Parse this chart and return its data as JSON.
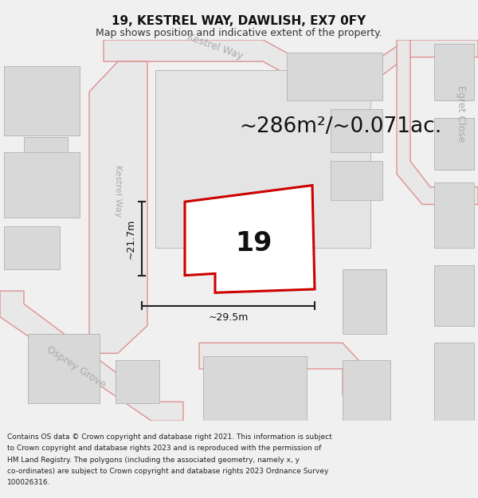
{
  "title": "19, KESTREL WAY, DAWLISH, EX7 0FY",
  "subtitle": "Map shows position and indicative extent of the property.",
  "footer_lines": [
    "Contains OS data © Crown copyright and database right 2021. This information is subject",
    "to Crown copyright and database rights 2023 and is reproduced with the permission of",
    "HM Land Registry. The polygons (including the associated geometry, namely x, y",
    "co-ordinates) are subject to Crown copyright and database rights 2023 Ordnance Survey",
    "100026316."
  ],
  "area_label": "~286m²/~0.071ac.",
  "width_label": "~29.5m",
  "height_label": "~21.7m",
  "plot_number": "19",
  "bg_color": "#f0f0f0",
  "map_bg": "#ffffff",
  "road_fill": "#e8e8e8",
  "road_stroke": "#e09090",
  "block_fill": "#d8d8d8",
  "parcel_bg_fill": "#e4e4e4",
  "property_stroke": "#cc0000",
  "property_fill": "#ffffff",
  "dim_line_color": "#222222",
  "street_label_color": "#aaaaaa",
  "title_fontsize": 11,
  "subtitle_fontsize": 9,
  "footer_fontsize": 6.5,
  "area_fontsize": 19,
  "plot_num_fontsize": 24,
  "dim_fontsize": 9,
  "street_fontsize": 9
}
